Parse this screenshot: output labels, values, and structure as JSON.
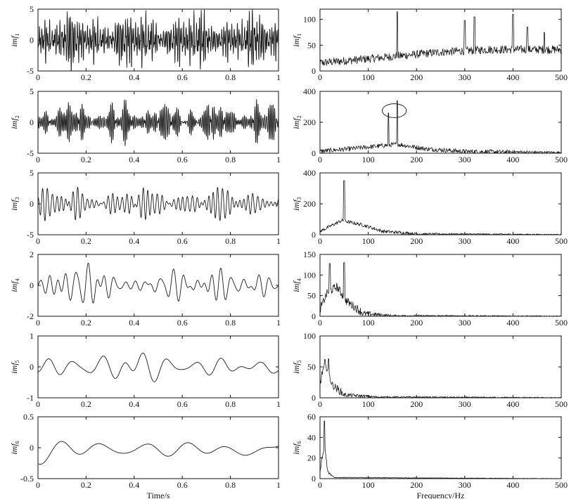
{
  "chart_data": [
    {
      "type": "line",
      "panel": "imf1-time",
      "ylabel": "imf",
      "ylabel_sub": "1",
      "xlim": [
        0,
        1
      ],
      "ylim": [
        -5,
        5
      ],
      "xticks": [
        "0",
        "0.2",
        "0.4",
        "0.6",
        "0.8",
        "1"
      ],
      "yticks": [
        "-5",
        "0",
        "5"
      ],
      "xlabel": "",
      "series": [
        {
          "kind": "osc",
          "amplitude": 2.2,
          "components": [
            [
              95,
              1
            ],
            [
              140,
              0.8
            ],
            [
              160,
              0.9
            ],
            [
              210,
              0.6
            ],
            [
              260,
              0.5
            ]
          ]
        }
      ]
    },
    {
      "type": "line",
      "panel": "imf1-spectrum",
      "ylabel": "imf",
      "ylabel_sub": "1",
      "xlim": [
        0,
        500
      ],
      "ylim": [
        0,
        120
      ],
      "xticks": [
        "0",
        "100",
        "200",
        "300",
        "400",
        "500"
      ],
      "yticks": [
        "0",
        "50",
        "100"
      ],
      "xlabel": "",
      "series": [
        {
          "kind": "spec",
          "base": [
            [
              0,
              14
            ],
            [
              100,
              22
            ],
            [
              250,
              35
            ],
            [
              350,
              40
            ],
            [
              500,
              40
            ]
          ],
          "noise": 16,
          "peaks": [
            [
              160,
              115
            ],
            [
              300,
              98
            ],
            [
              320,
              105
            ],
            [
              400,
              110
            ],
            [
              430,
              85
            ],
            [
              465,
              75
            ]
          ]
        }
      ]
    },
    {
      "type": "line",
      "panel": "imf2-time",
      "ylabel": "imf",
      "ylabel_sub": "2",
      "xlim": [
        0,
        1
      ],
      "ylim": [
        -5,
        5
      ],
      "xticks": [
        "0",
        "0.2",
        "0.4",
        "0.6",
        "0.8",
        "1"
      ],
      "yticks": [
        "-5",
        "0",
        "5"
      ],
      "xlabel": "",
      "series": [
        {
          "kind": "osc",
          "amplitude": 1.3,
          "components": [
            [
              142,
              1
            ],
            [
              160,
              1
            ],
            [
              175,
              0.6
            ],
            [
              120,
              0.5
            ]
          ],
          "mod": [
            0.45,
            5
          ]
        }
      ]
    },
    {
      "type": "line",
      "panel": "imf2-spectrum",
      "ylabel": "imf",
      "ylabel_sub": "2",
      "xlim": [
        0,
        500
      ],
      "ylim": [
        0,
        400
      ],
      "xticks": [
        "0",
        "100",
        "200",
        "300",
        "400",
        "500"
      ],
      "yticks": [
        "0",
        "200",
        "400"
      ],
      "xlabel": "",
      "series": [
        {
          "kind": "spec",
          "base": [
            [
              0,
              10
            ],
            [
              60,
              25
            ],
            [
              160,
              55
            ],
            [
              220,
              25
            ],
            [
              300,
              8
            ],
            [
              500,
              3
            ]
          ],
          "noise": 30,
          "peaks": [
            [
              142,
              260
            ],
            [
              160,
              340
            ]
          ]
        }
      ],
      "annotations": [
        {
          "type": "ellipse",
          "cx": 154,
          "cy": 275,
          "rx": 25,
          "ry": 45
        }
      ]
    },
    {
      "type": "line",
      "panel": "imf3-time",
      "ylabel": "imf",
      "ylabel_sub": "3",
      "xlim": [
        0,
        1
      ],
      "ylim": [
        -5,
        5
      ],
      "xticks": [
        "0",
        "0.2",
        "0.4",
        "0.6",
        "0.8",
        "1"
      ],
      "yticks": [
        "-5",
        "0",
        "5"
      ],
      "xlabel": "",
      "series": [
        {
          "kind": "osc",
          "amplitude": 1.1,
          "components": [
            [
              48,
              1
            ],
            [
              55,
              0.9
            ],
            [
              62,
              0.5
            ],
            [
              40,
              0.4
            ]
          ],
          "mod": [
            0.4,
            3
          ]
        }
      ]
    },
    {
      "type": "line",
      "panel": "imf3-spectrum",
      "ylabel": "imf",
      "ylabel_sub": "3",
      "xlim": [
        0,
        500
      ],
      "ylim": [
        0,
        400
      ],
      "xticks": [
        "0",
        "100",
        "200",
        "300",
        "400",
        "500"
      ],
      "yticks": [
        "0",
        "200",
        "400"
      ],
      "xlabel": "",
      "series": [
        {
          "kind": "spec",
          "base": [
            [
              0,
              20
            ],
            [
              45,
              90
            ],
            [
              90,
              60
            ],
            [
              130,
              20
            ],
            [
              200,
              4
            ],
            [
              500,
              1
            ]
          ],
          "noise": 22,
          "peaks": [
            [
              50,
              350
            ]
          ]
        }
      ]
    },
    {
      "type": "line",
      "panel": "imf4-time",
      "ylabel": "imf",
      "ylabel_sub": "4",
      "xlim": [
        0,
        1
      ],
      "ylim": [
        -2,
        2
      ],
      "xticks": [
        "0",
        "0.2",
        "0.4",
        "0.6",
        "0.8",
        "1"
      ],
      "yticks": [
        "-2",
        "0",
        "2"
      ],
      "xlabel": "",
      "series": [
        {
          "kind": "osc",
          "amplitude": 0.55,
          "components": [
            [
              20,
              1
            ],
            [
              25,
              0.8
            ],
            [
              31,
              0.6
            ],
            [
              17,
              0.5
            ]
          ],
          "mod": [
            0.5,
            2
          ]
        }
      ]
    },
    {
      "type": "line",
      "panel": "imf4-spectrum",
      "ylabel": "imf",
      "ylabel_sub": "4",
      "xlim": [
        0,
        500
      ],
      "ylim": [
        0,
        150
      ],
      "xticks": [
        "0",
        "100",
        "200",
        "300",
        "400",
        "500"
      ],
      "yticks": [
        "0",
        "50",
        "100",
        "150"
      ],
      "xlabel": "",
      "series": [
        {
          "kind": "spec",
          "base": [
            [
              0,
              15
            ],
            [
              15,
              55
            ],
            [
              35,
              70
            ],
            [
              55,
              35
            ],
            [
              90,
              5
            ],
            [
              150,
              1
            ],
            [
              500,
              0
            ]
          ],
          "noise": 20,
          "peaks": [
            [
              20,
              128
            ],
            [
              50,
              130
            ]
          ]
        }
      ]
    },
    {
      "type": "line",
      "panel": "imf5-time",
      "ylabel": "imf",
      "ylabel_sub": "5",
      "xlim": [
        0,
        1
      ],
      "ylim": [
        -1,
        1
      ],
      "xticks": [
        "0",
        "0.2",
        "0.4",
        "0.6",
        "0.8",
        "1"
      ],
      "yticks": [
        "-1",
        "0",
        "1"
      ],
      "xlabel": "",
      "series": [
        {
          "kind": "osc",
          "amplitude": 0.22,
          "components": [
            [
              8,
              1
            ],
            [
              10,
              0.9
            ],
            [
              12.5,
              0.7
            ],
            [
              6,
              0.4
            ]
          ],
          "mod": [
            0.5,
            1.3
          ]
        }
      ]
    },
    {
      "type": "line",
      "panel": "imf5-spectrum",
      "ylabel": "imf",
      "ylabel_sub": "5",
      "xlim": [
        0,
        500
      ],
      "ylim": [
        0,
        100
      ],
      "xticks": [
        "0",
        "100",
        "200",
        "300",
        "400",
        "500"
      ],
      "yticks": [
        "0",
        "50",
        "100"
      ],
      "xlabel": "",
      "series": [
        {
          "kind": "spec",
          "base": [
            [
              0,
              20
            ],
            [
              6,
              45
            ],
            [
              15,
              48
            ],
            [
              25,
              20
            ],
            [
              50,
              4
            ],
            [
              120,
              1
            ],
            [
              500,
              0
            ]
          ],
          "noise": 12,
          "peaks": [
            [
              10,
              62
            ],
            [
              18,
              63
            ]
          ]
        }
      ]
    },
    {
      "type": "line",
      "panel": "imf6-time",
      "ylabel": "imf",
      "ylabel_sub": "6",
      "xlim": [
        0,
        1
      ],
      "ylim": [
        -0.5,
        0.5
      ],
      "xticks": [
        "0",
        "0.2",
        "0.4",
        "0.6",
        "0.8",
        "1"
      ],
      "yticks": [
        "-0.5",
        "0",
        "0.5"
      ],
      "xlabel": "Time/s",
      "series": [
        {
          "kind": "osc",
          "amplitude": 0.12,
          "components": [
            [
              6,
              1
            ],
            [
              5.2,
              0.9
            ],
            [
              3.6,
              0.6
            ],
            [
              2.6,
              0.4
            ]
          ],
          "mod": [
            0.5,
            0.9
          ],
          "offset": -0.03
        }
      ]
    },
    {
      "type": "line",
      "panel": "imf6-spectrum",
      "ylabel": "imf",
      "ylabel_sub": "6",
      "xlim": [
        0,
        500
      ],
      "ylim": [
        0,
        60
      ],
      "xticks": [
        "0",
        "100",
        "200",
        "300",
        "400",
        "500"
      ],
      "yticks": [
        "0",
        "20",
        "40",
        "60"
      ],
      "xlabel": "Frequency/Hz",
      "series": [
        {
          "kind": "spec",
          "base": [
            [
              0,
              5
            ],
            [
              4,
              20
            ],
            [
              10,
              30
            ],
            [
              16,
              6
            ],
            [
              30,
              1
            ],
            [
              500,
              0
            ]
          ],
          "noise": 3,
          "peaks": [
            [
              9,
              56
            ],
            [
              14,
              8
            ]
          ]
        }
      ]
    }
  ]
}
